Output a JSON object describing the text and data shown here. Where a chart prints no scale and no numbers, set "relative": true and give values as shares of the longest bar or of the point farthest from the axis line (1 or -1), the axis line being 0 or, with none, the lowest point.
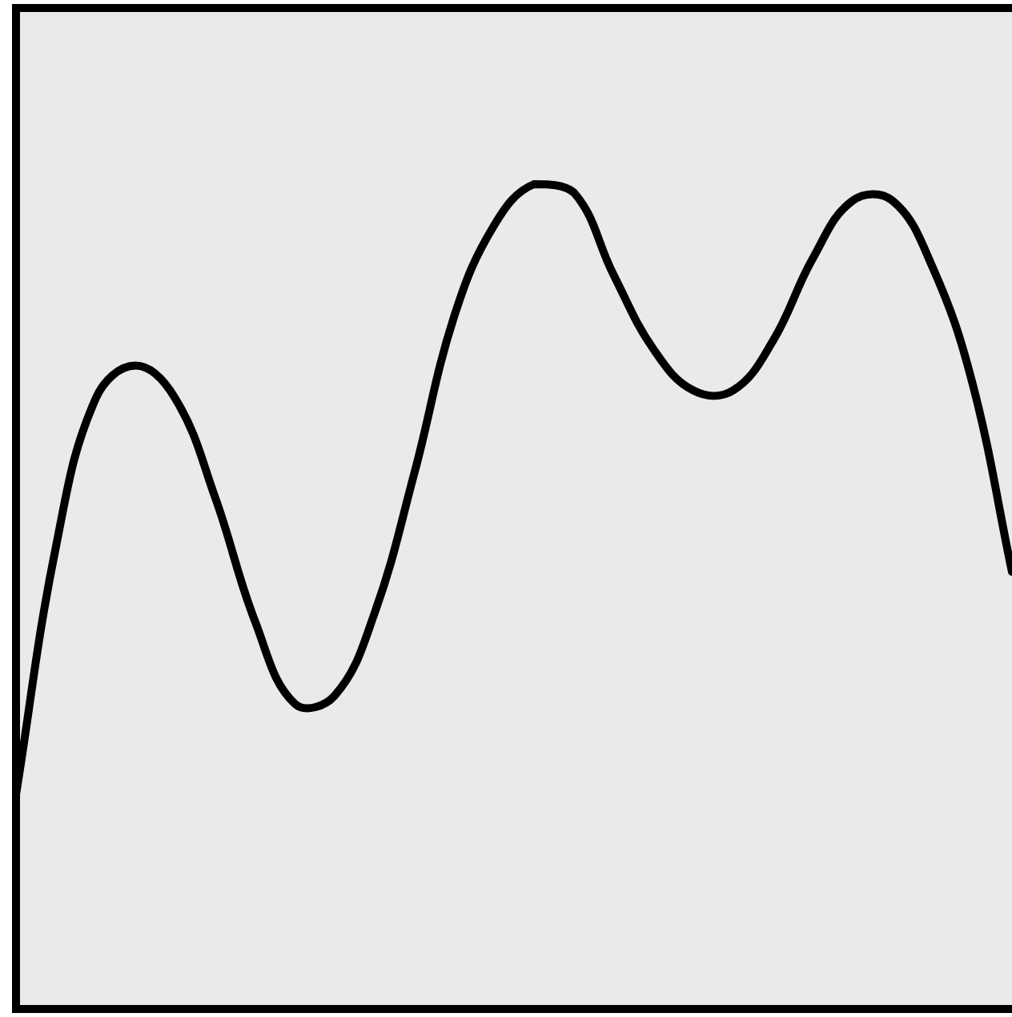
{
  "chart_data": {
    "type": "line",
    "relative": true,
    "marker": "none",
    "line_style": "solid",
    "categories": [
      null,
      null,
      null,
      null,
      null,
      null,
      null,
      null,
      null,
      null,
      null,
      null,
      null,
      null,
      null,
      null,
      null,
      null,
      null,
      null,
      null,
      null,
      null,
      null,
      null,
      null
    ],
    "series": [
      {
        "color": "#000000",
        "values": [
          0.26,
          0.56,
          0.74,
          0.78,
          0.74,
          0.62,
          0.47,
          0.37,
          0.38,
          0.48,
          0.65,
          0.84,
          0.95,
          1,
          0.99,
          0.89,
          0.8,
          0.75,
          0.75,
          0.81,
          0.91,
          0.98,
          0.98,
          0.9,
          0.76,
          0.53
        ]
      }
    ]
  }
}
